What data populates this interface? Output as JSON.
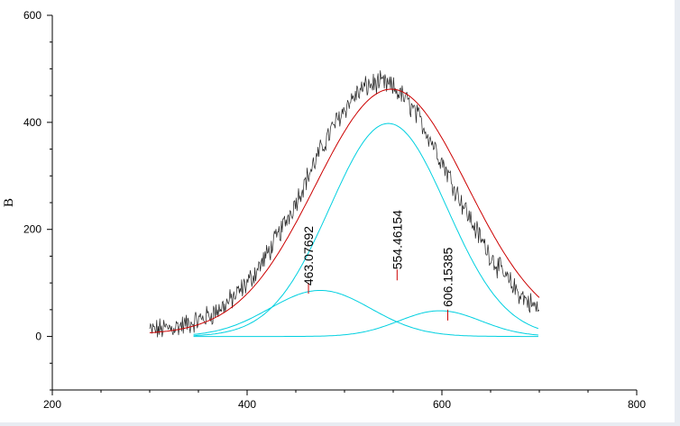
{
  "chart_data": {
    "type": "line",
    "ylabel": "B",
    "xlabel": "",
    "title": "",
    "xlim": [
      200,
      800
    ],
    "ylim": [
      -100,
      600
    ],
    "x_ticks": [
      "200",
      "400",
      "600",
      "800"
    ],
    "y_ticks": [
      "0",
      "200",
      "400",
      "600"
    ],
    "raw": {
      "x_range": [
        300,
        700
      ],
      "description_series": "noisy spectrum",
      "center": 535,
      "sigma": 75,
      "amplitude": 465
    },
    "fitted_sum": {
      "center": 548,
      "sigma": 78,
      "amplitude": 458
    },
    "components": [
      {
        "name": "",
        "center": 475,
        "sigma": 52,
        "amplitude": 86,
        "x_range": [
          345,
          700
        ]
      },
      {
        "name": "",
        "center": 545,
        "sigma": 60,
        "amplitude": 398,
        "x_range": [
          345,
          700
        ]
      },
      {
        "name": "",
        "center": 598,
        "sigma": 42,
        "amplitude": 48,
        "x_range": [
          345,
          700
        ]
      }
    ],
    "peak_labels": [
      {
        "text": "463.07692",
        "x": 463,
        "y": 95,
        "tick_bottom": 100
      },
      {
        "text": "554.46154",
        "x": 554,
        "y": 125,
        "tick_bottom": 125
      },
      {
        "text": "606.15385",
        "x": 606,
        "y": 55,
        "tick_bottom": 50
      }
    ],
    "colors": {
      "raw": "#222222",
      "fit": "#cc0000",
      "components": "#00d0e0",
      "peak_tick": "#cc0000"
    },
    "grid": false,
    "legend": "none"
  }
}
